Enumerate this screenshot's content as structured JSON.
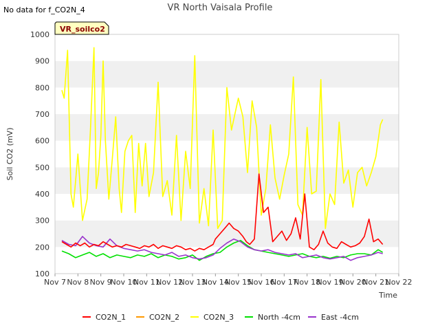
{
  "notice": "No data for f_CO2N_4",
  "badge": "VR_soilco2",
  "chart_data": {
    "type": "line",
    "title": "VR North Vaisala Profile",
    "xlabel": "Time",
    "ylabel": "Soil CO2 (mV)",
    "ylim": [
      100,
      1000
    ],
    "yticks": [
      100,
      200,
      300,
      400,
      500,
      600,
      700,
      800,
      900,
      1000
    ],
    "xlim": [
      0,
      15
    ],
    "xticks": [
      0,
      1,
      2,
      3,
      4,
      5,
      6,
      7,
      8,
      9,
      10,
      11,
      12,
      13,
      14,
      15
    ],
    "xtick_labels": [
      "Nov 7",
      "Nov 8",
      "Nov 9",
      "Nov 10",
      "Nov 11",
      "Nov 12",
      "Nov 13",
      "Nov 14",
      "Nov 15",
      "Nov 16",
      "Nov 17",
      "Nov 18",
      "Nov 19",
      "Nov 20",
      "Nov 21",
      "Nov 22"
    ],
    "grid": "horizontal bands",
    "legend_position": "bottom",
    "series": [
      {
        "name": "CO2N_1",
        "color": "#ff0000",
        "x": [
          0.3,
          0.5,
          0.7,
          0.9,
          1.1,
          1.3,
          1.5,
          1.7,
          1.9,
          2.1,
          2.3,
          2.5,
          2.7,
          2.9,
          3.1,
          3.3,
          3.5,
          3.7,
          3.9,
          4.1,
          4.3,
          4.5,
          4.7,
          4.9,
          5.1,
          5.3,
          5.5,
          5.7,
          5.9,
          6.1,
          6.3,
          6.5,
          6.7,
          6.9,
          7.0,
          7.2,
          7.4,
          7.6,
          7.8,
          8.0,
          8.2,
          8.35,
          8.5,
          8.7,
          8.9,
          9.1,
          9.3,
          9.5,
          9.7,
          9.9,
          10.1,
          10.3,
          10.5,
          10.7,
          10.9,
          11.1,
          11.3,
          11.5,
          11.7,
          11.9,
          12.1,
          12.3,
          12.5,
          12.7,
          12.9,
          13.1,
          13.3,
          13.5,
          13.7,
          13.9,
          14.1,
          14.3
        ],
        "y": [
          220,
          210,
          200,
          215,
          205,
          215,
          200,
          210,
          205,
          220,
          210,
          200,
          205,
          200,
          210,
          205,
          200,
          195,
          205,
          200,
          210,
          195,
          205,
          200,
          195,
          205,
          200,
          190,
          195,
          185,
          195,
          190,
          200,
          210,
          230,
          250,
          270,
          290,
          270,
          260,
          240,
          220,
          210,
          230,
          475,
          330,
          350,
          220,
          240,
          260,
          225,
          250,
          310,
          230,
          400,
          200,
          190,
          210,
          260,
          215,
          200,
          195,
          220,
          210,
          200,
          205,
          215,
          240,
          305,
          220,
          230,
          210
        ]
      },
      {
        "name": "CO2N_2",
        "color": "#ff9900",
        "x": [],
        "y": []
      },
      {
        "name": "CO2N_3",
        "color": "#ffff00",
        "x": [
          0.3,
          0.4,
          0.55,
          0.7,
          0.8,
          1.0,
          1.2,
          1.4,
          1.55,
          1.7,
          1.8,
          1.9,
          2.0,
          2.1,
          2.2,
          2.35,
          2.5,
          2.65,
          2.8,
          2.9,
          3.05,
          3.2,
          3.35,
          3.5,
          3.65,
          3.8,
          3.95,
          4.1,
          4.3,
          4.5,
          4.7,
          4.9,
          5.1,
          5.3,
          5.5,
          5.7,
          5.9,
          6.1,
          6.3,
          6.5,
          6.7,
          6.9,
          7.1,
          7.3,
          7.5,
          7.7,
          7.9,
          8.0,
          8.2,
          8.4,
          8.6,
          8.8,
          9.0,
          9.2,
          9.4,
          9.6,
          9.8,
          10.0,
          10.2,
          10.4,
          10.6,
          10.8,
          11.0,
          11.2,
          11.4,
          11.6,
          11.8,
          12.0,
          12.2,
          12.4,
          12.6,
          12.8,
          13.0,
          13.2,
          13.4,
          13.6,
          13.8,
          14.0,
          14.2,
          14.3
        ],
        "y": [
          790,
          760,
          940,
          400,
          350,
          550,
          300,
          380,
          650,
          950,
          420,
          480,
          620,
          900,
          600,
          380,
          530,
          690,
          420,
          330,
          560,
          600,
          620,
          330,
          590,
          430,
          590,
          390,
          480,
          820,
          390,
          450,
          320,
          620,
          300,
          560,
          420,
          920,
          290,
          420,
          280,
          640,
          270,
          300,
          800,
          640,
          720,
          760,
          690,
          480,
          750,
          650,
          320,
          420,
          660,
          460,
          380,
          470,
          550,
          840,
          360,
          320,
          650,
          400,
          410,
          830,
          270,
          400,
          360,
          670,
          440,
          490,
          350,
          480,
          500,
          430,
          480,
          540,
          660,
          680
        ]
      },
      {
        "name": "North -4cm",
        "color": "#00e000",
        "x": [
          0.3,
          0.6,
          0.9,
          1.2,
          1.5,
          1.8,
          2.1,
          2.4,
          2.7,
          3.0,
          3.3,
          3.6,
          3.9,
          4.2,
          4.5,
          4.8,
          5.1,
          5.4,
          5.7,
          6.0,
          6.3,
          6.6,
          6.9,
          7.2,
          7.5,
          7.8,
          8.1,
          8.4,
          8.7,
          9.0,
          9.3,
          9.6,
          9.9,
          10.2,
          10.5,
          10.8,
          11.1,
          11.4,
          11.7,
          12.0,
          12.3,
          12.6,
          12.9,
          13.2,
          13.5,
          13.8,
          14.1,
          14.3
        ],
        "y": [
          185,
          175,
          160,
          170,
          180,
          165,
          175,
          160,
          170,
          165,
          160,
          170,
          165,
          175,
          160,
          170,
          165,
          155,
          160,
          170,
          150,
          165,
          175,
          180,
          200,
          215,
          225,
          205,
          190,
          185,
          180,
          175,
          170,
          165,
          170,
          175,
          165,
          160,
          165,
          158,
          165,
          160,
          170,
          175,
          175,
          170,
          190,
          180
        ]
      },
      {
        "name": "East -4cm",
        "color": "#9933cc",
        "x": [
          0.3,
          0.6,
          0.9,
          1.2,
          1.5,
          1.8,
          2.1,
          2.4,
          2.7,
          3.0,
          3.3,
          3.6,
          3.9,
          4.2,
          4.5,
          4.8,
          5.1,
          5.4,
          5.7,
          6.0,
          6.3,
          6.6,
          6.9,
          7.2,
          7.5,
          7.8,
          8.1,
          8.4,
          8.7,
          9.0,
          9.3,
          9.6,
          9.9,
          10.2,
          10.5,
          10.8,
          11.1,
          11.4,
          11.7,
          12.0,
          12.3,
          12.6,
          12.9,
          13.2,
          13.5,
          13.8,
          14.1,
          14.3
        ],
        "y": [
          225,
          210,
          205,
          240,
          215,
          205,
          200,
          230,
          205,
          195,
          190,
          185,
          190,
          180,
          175,
          170,
          180,
          165,
          170,
          160,
          155,
          160,
          170,
          195,
          215,
          230,
          220,
          200,
          190,
          185,
          190,
          180,
          175,
          170,
          175,
          160,
          165,
          170,
          160,
          155,
          160,
          165,
          150,
          160,
          165,
          170,
          180,
          175
        ]
      }
    ]
  }
}
